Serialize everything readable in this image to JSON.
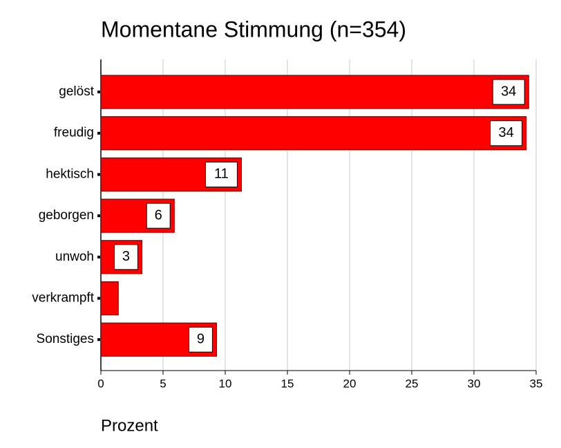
{
  "chart_data": {
    "type": "hbar",
    "title": "Momentane Stimmung (n=354)",
    "x_label": "Prozent",
    "categories": [
      "gelöst",
      "freudig",
      "hektisch",
      "geborgen",
      "unwoh",
      "verkrampft",
      "Sonstiges"
    ],
    "values": [
      34.4,
      34.2,
      11.3,
      5.9,
      3.3,
      1.4,
      9.3
    ],
    "value_labels": [
      "34",
      "34",
      "11",
      "6",
      "3",
      null,
      "9"
    ],
    "color": "#ff0000",
    "xlim": [
      0,
      35
    ],
    "xticks": [
      0,
      5,
      10,
      15,
      20,
      25,
      30,
      35
    ],
    "grid": true
  }
}
